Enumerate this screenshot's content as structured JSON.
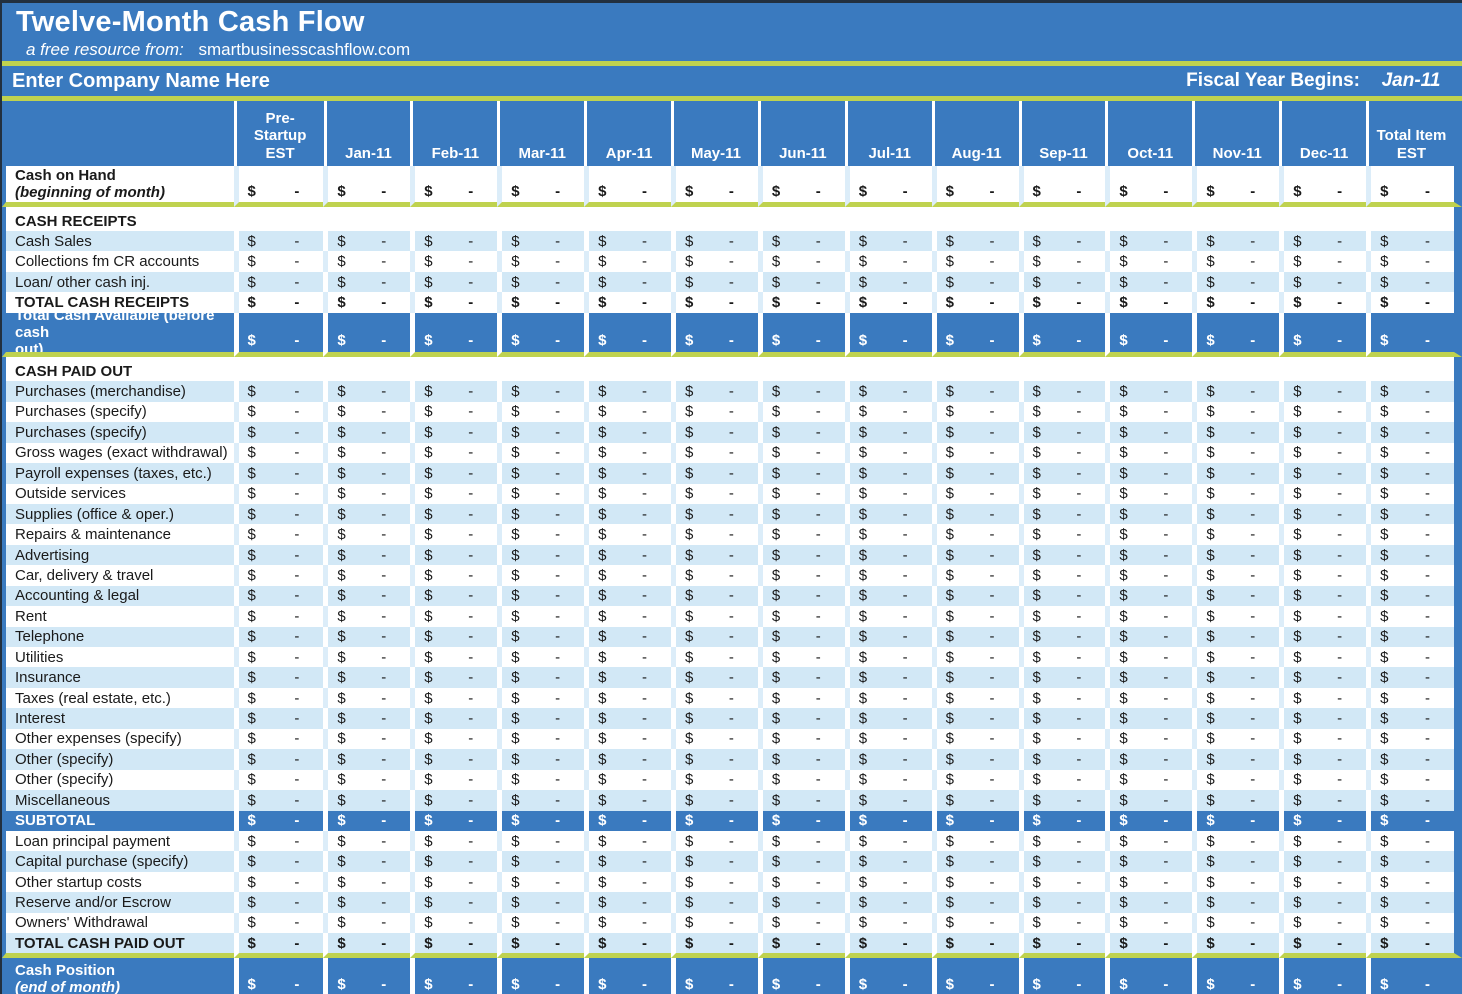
{
  "title": "Twelve-Month Cash Flow",
  "subtitle": {
    "label": "a free resource from:",
    "site": "smartbusinesscashflow.com"
  },
  "company_row": {
    "name": "Enter Company Name Here",
    "fiscal_label": "Fiscal Year Begins:",
    "fiscal_value": "Jan-11"
  },
  "colors": {
    "header_blue": "#3a7abf",
    "row_alt_blue": "#d2e8f6",
    "accent_green": "#bfd24f",
    "text_dark": "#1a1a1a",
    "text_white": "#ffffff"
  },
  "cell_format": {
    "dollar": "$",
    "dash": "-"
  },
  "columns": [
    {
      "id": "pre-startup",
      "width": "pre",
      "lines": [
        "Pre-",
        "Startup",
        "EST"
      ]
    },
    {
      "id": "jan-11",
      "width": "month",
      "lines": [
        "Jan-11"
      ]
    },
    {
      "id": "feb-11",
      "width": "month",
      "lines": [
        "Feb-11"
      ]
    },
    {
      "id": "mar-11",
      "width": "month",
      "lines": [
        "Mar-11"
      ]
    },
    {
      "id": "apr-11",
      "width": "month",
      "lines": [
        "Apr-11"
      ]
    },
    {
      "id": "may-11",
      "width": "month",
      "lines": [
        "May-11"
      ]
    },
    {
      "id": "jun-11",
      "width": "month",
      "lines": [
        "Jun-11"
      ]
    },
    {
      "id": "jul-11",
      "width": "month",
      "lines": [
        "Jul-11"
      ]
    },
    {
      "id": "aug-11",
      "width": "month",
      "lines": [
        "Aug-11"
      ]
    },
    {
      "id": "sep-11",
      "width": "month",
      "lines": [
        "Sep-11"
      ]
    },
    {
      "id": "oct-11",
      "width": "month",
      "lines": [
        "Oct-11"
      ]
    },
    {
      "id": "nov-11",
      "width": "month",
      "lines": [
        "Nov-11"
      ]
    },
    {
      "id": "dec-11",
      "width": "month",
      "lines": [
        "Dec-11"
      ]
    },
    {
      "id": "total-item",
      "width": "total",
      "lines": [
        "Total Item",
        "EST"
      ]
    }
  ],
  "rows": [
    {
      "label": "Cash on Hand",
      "label2": "(beginning of month)",
      "cls": "r-white coh"
    },
    {
      "label": "CASH RECEIPTS",
      "cls": "r-white section",
      "vals": false
    },
    {
      "label": "Cash Sales",
      "cls": "r-alt h-std"
    },
    {
      "label": "Collections fm CR accounts",
      "cls": "r-white h-std"
    },
    {
      "label": "Loan/ other cash inj.",
      "cls": "r-alt h-std"
    },
    {
      "label": "TOTAL CASH RECEIPTS",
      "cls": "r-white totalw"
    },
    {
      "label": "Total Cash Available (before cash",
      "label2": "out)",
      "cls": "r-blue blue2"
    },
    {
      "label": "CASH PAID OUT",
      "cls": "r-white section",
      "vals": false
    },
    {
      "label": "Purchases (merchandise)",
      "cls": "r-alt h-std"
    },
    {
      "label": "Purchases (specify)",
      "cls": "r-white h-std"
    },
    {
      "label": "Purchases (specify)",
      "cls": "r-alt h-std"
    },
    {
      "label": "Gross wages (exact withdrawal)",
      "cls": "r-white h-std"
    },
    {
      "label": "Payroll expenses (taxes, etc.)",
      "cls": "r-alt h-std"
    },
    {
      "label": "Outside services",
      "cls": "r-white h-std"
    },
    {
      "label": "Supplies (office & oper.)",
      "cls": "r-alt h-std"
    },
    {
      "label": "Repairs & maintenance",
      "cls": "r-white h-std"
    },
    {
      "label": "Advertising",
      "cls": "r-alt h-std"
    },
    {
      "label": "Car, delivery & travel",
      "cls": "r-white h-std"
    },
    {
      "label": "Accounting & legal",
      "cls": "r-alt h-std"
    },
    {
      "label": "Rent",
      "cls": "r-white h-std"
    },
    {
      "label": "Telephone",
      "cls": "r-alt h-std"
    },
    {
      "label": "Utilities",
      "cls": "r-white h-std"
    },
    {
      "label": "Insurance",
      "cls": "r-alt h-std"
    },
    {
      "label": "Taxes (real estate, etc.)",
      "cls": "r-white h-std"
    },
    {
      "label": "Interest",
      "cls": "r-alt h-std"
    },
    {
      "label": "Other expenses (specify)",
      "cls": "r-white h-std"
    },
    {
      "label": "Other (specify)",
      "cls": "r-alt h-std"
    },
    {
      "label": "Other (specify)",
      "cls": "r-white h-std"
    },
    {
      "label": "Miscellaneous",
      "cls": "r-alt h-std"
    },
    {
      "label": "SUBTOTAL",
      "cls": "r-blue subtotal"
    },
    {
      "label": "Loan principal payment",
      "cls": "r-white h-std"
    },
    {
      "label": "Capital purchase (specify)",
      "cls": "r-alt h-std"
    },
    {
      "label": "Other startup costs",
      "cls": "r-white h-std"
    },
    {
      "label": "Reserve and/or Escrow",
      "cls": "r-alt h-std"
    },
    {
      "label": "Owners' Withdrawal",
      "cls": "r-white h-std"
    },
    {
      "label": "TOTAL CASH PAID OUT",
      "cls": "r-alt totala"
    },
    {
      "label": "Cash Position",
      "label2": "(end of month)",
      "cls": "r-blue pos"
    }
  ]
}
